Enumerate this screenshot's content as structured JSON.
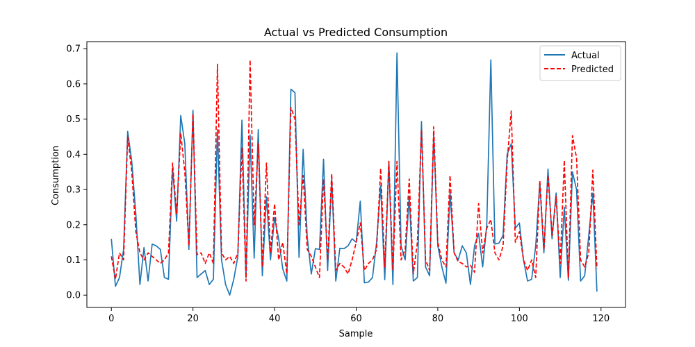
{
  "chart_data": {
    "type": "line",
    "title": "Actual vs Predicted Consumption",
    "xlabel": "Sample",
    "ylabel": "Consumption",
    "xlim": [
      -6,
      126
    ],
    "ylim": [
      -0.035,
      0.72
    ],
    "xticks": [
      0,
      20,
      40,
      60,
      80,
      100,
      120
    ],
    "yticks": [
      0.0,
      0.1,
      0.2,
      0.3,
      0.4,
      0.5,
      0.6,
      0.7
    ],
    "xtick_labels": [
      "0",
      "20",
      "40",
      "60",
      "80",
      "100",
      "120"
    ],
    "ytick_labels": [
      "0.0",
      "0.1",
      "0.2",
      "0.3",
      "0.4",
      "0.5",
      "0.6",
      "0.7"
    ],
    "legend_position": "upper right",
    "series": [
      {
        "name": "Actual",
        "color": "#1f77b4",
        "style": "solid",
        "values": [
          0.16,
          0.025,
          0.05,
          0.13,
          0.465,
          0.38,
          0.23,
          0.03,
          0.135,
          0.04,
          0.145,
          0.14,
          0.13,
          0.05,
          0.045,
          0.36,
          0.21,
          0.51,
          0.43,
          0.13,
          0.525,
          0.05,
          0.06,
          0.07,
          0.03,
          0.045,
          0.47,
          0.1,
          0.03,
          0.0,
          0.045,
          0.11,
          0.497,
          0.05,
          0.455,
          0.105,
          0.47,
          0.055,
          0.28,
          0.1,
          0.22,
          0.16,
          0.075,
          0.04,
          0.585,
          0.575,
          0.107,
          0.414,
          0.165,
          0.06,
          0.132,
          0.13,
          0.386,
          0.07,
          0.33,
          0.04,
          0.133,
          0.132,
          0.14,
          0.16,
          0.15,
          0.267,
          0.035,
          0.037,
          0.05,
          0.15,
          0.31,
          0.044,
          0.38,
          0.03,
          0.688,
          0.14,
          0.1,
          0.28,
          0.04,
          0.05,
          0.493,
          0.08,
          0.055,
          0.46,
          0.14,
          0.08,
          0.034,
          0.29,
          0.12,
          0.1,
          0.14,
          0.12,
          0.03,
          0.14,
          0.175,
          0.08,
          0.2,
          0.668,
          0.145,
          0.148,
          0.17,
          0.4,
          0.43,
          0.19,
          0.205,
          0.1,
          0.04,
          0.045,
          0.14,
          0.32,
          0.12,
          0.358,
          0.16,
          0.29,
          0.05,
          0.25,
          0.042,
          0.35,
          0.3,
          0.04,
          0.055,
          0.17,
          0.29,
          0.01
        ]
      },
      {
        "name": "Predicted",
        "color": "#ff0000",
        "style": "dashed",
        "values": [
          0.11,
          0.045,
          0.12,
          0.1,
          0.45,
          0.35,
          0.18,
          0.12,
          0.1,
          0.12,
          0.11,
          0.1,
          0.09,
          0.1,
          0.12,
          0.375,
          0.23,
          0.46,
          0.35,
          0.14,
          0.515,
          0.115,
          0.12,
          0.09,
          0.12,
          0.09,
          0.656,
          0.12,
          0.1,
          0.11,
          0.09,
          0.12,
          0.42,
          0.04,
          0.668,
          0.2,
          0.43,
          0.08,
          0.375,
          0.12,
          0.26,
          0.1,
          0.15,
          0.06,
          0.533,
          0.5,
          0.2,
          0.34,
          0.13,
          0.11,
          0.08,
          0.05,
          0.33,
          0.1,
          0.345,
          0.07,
          0.09,
          0.08,
          0.06,
          0.1,
          0.15,
          0.205,
          0.07,
          0.09,
          0.1,
          0.13,
          0.36,
          0.08,
          0.38,
          0.07,
          0.38,
          0.1,
          0.13,
          0.33,
          0.06,
          0.15,
          0.47,
          0.1,
          0.07,
          0.478,
          0.15,
          0.1,
          0.08,
          0.34,
          0.12,
          0.095,
          0.09,
          0.08,
          0.085,
          0.065,
          0.26,
          0.12,
          0.19,
          0.215,
          0.12,
          0.1,
          0.14,
          0.38,
          0.523,
          0.15,
          0.18,
          0.1,
          0.07,
          0.1,
          0.05,
          0.325,
          0.13,
          0.34,
          0.17,
          0.28,
          0.09,
          0.383,
          0.05,
          0.453,
          0.39,
          0.1,
          0.08,
          0.12,
          0.355,
          0.075
        ]
      }
    ]
  }
}
